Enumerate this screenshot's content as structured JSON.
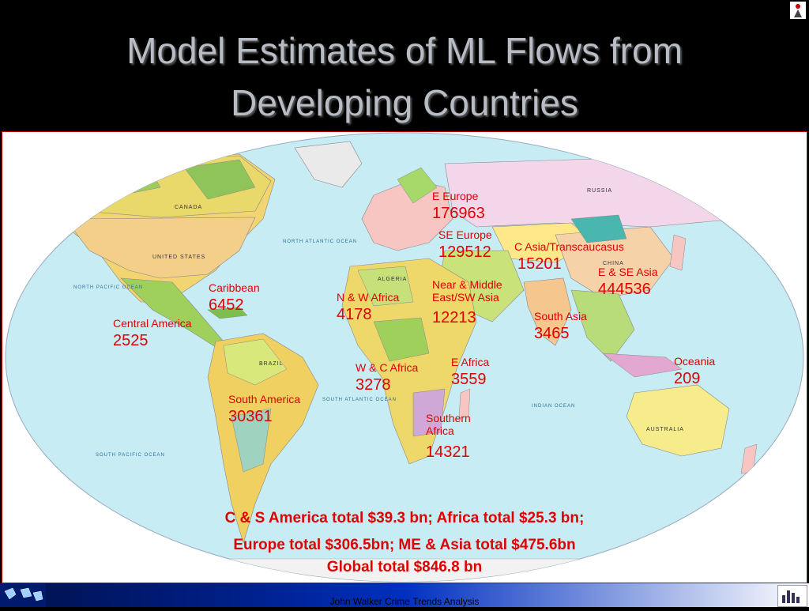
{
  "title": {
    "line1": "Model Estimates of ML Flows from",
    "line2": "Developing Countries"
  },
  "map": {
    "land_color": "#e8e06a",
    "ocean_color": "#c8ecf4",
    "regions": [
      {
        "name": "E Europe",
        "value": "176963"
      },
      {
        "name": "SE Europe",
        "value": "129512"
      },
      {
        "name": "C Asia/Transcaucasus",
        "value": "15201"
      },
      {
        "name": "E & SE Asia",
        "value": "444536"
      },
      {
        "name": "Caribbean",
        "value": "6452"
      },
      {
        "name": "N & W Africa",
        "value": "4178"
      },
      {
        "name": "Near & Middle East/SW Asia",
        "value": "12213"
      },
      {
        "name": "Central America",
        "value": "2525"
      },
      {
        "name": "South Asia",
        "value": "3465"
      },
      {
        "name": "W & C Africa",
        "value": "3278"
      },
      {
        "name": "E Africa",
        "value": "3559"
      },
      {
        "name": "Oceania",
        "value": "209"
      },
      {
        "name": "South America",
        "value": "30361"
      },
      {
        "name": "Southern Africa",
        "value": "14321"
      }
    ],
    "map_labels": {
      "canada": "CANADA",
      "usa": "UNITED STATES",
      "russia": "RUSSIA",
      "brazil": "BRAZIL",
      "australia": "AUSTRALIA",
      "china": "CHINA",
      "algeria": "ALGERIA",
      "indian_ocean": "INDIAN OCEAN",
      "north_atlantic": "NORTH ATLANTIC OCEAN",
      "north_pacific": "NORTH PACIFIC OCEAN",
      "south_atlantic": "SOUTH ATLANTIC OCEAN",
      "south_pacific": "SOUTH PACIFIC OCEAN"
    }
  },
  "totals": {
    "line1": "C & S America total $39.3 bn; Africa total $25.3 bn;",
    "line2": "Europe total $306.5bn; ME & Asia total $475.6bn",
    "line3": "Global total $846.8 bn"
  },
  "footer": {
    "text": "John Walker Crime Trends Analysis"
  }
}
